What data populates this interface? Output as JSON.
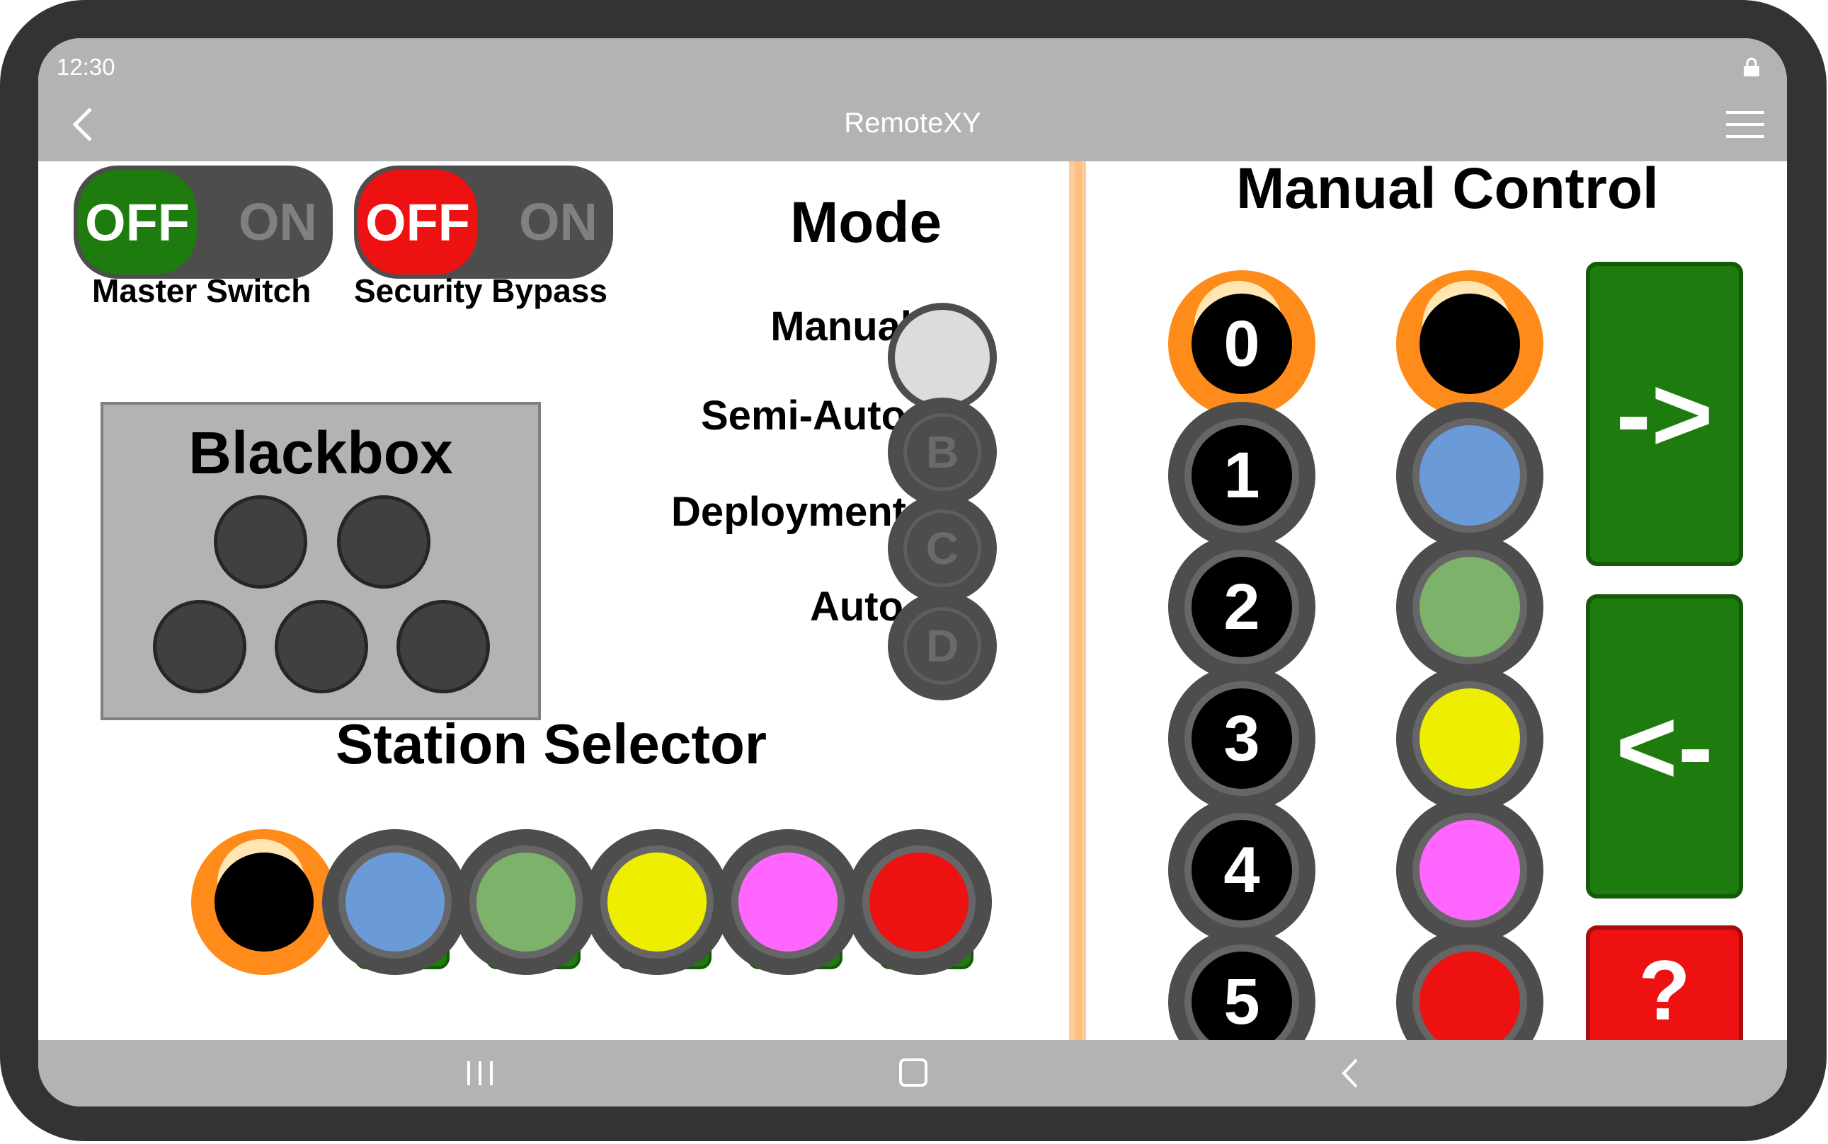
{
  "status_bar": {
    "time": "12:30",
    "icon": "lock-icon"
  },
  "title_bar": {
    "title": "RemoteXY",
    "back_icon": "chevron-left-icon",
    "menu_icon": "hamburger-menu-icon"
  },
  "nav_bar": {
    "icons": [
      "recent-apps-icon",
      "home-icon",
      "back-icon"
    ]
  },
  "switches": [
    {
      "off_label": "OFF",
      "on_label": "ON",
      "state": "OFF",
      "off_color": "#1e7b0d",
      "caption": "Master Switch"
    },
    {
      "off_label": "OFF",
      "on_label": "ON",
      "state": "OFF",
      "off_color": "#ee1111",
      "caption": "Security Bypass"
    }
  ],
  "blackbox": {
    "title": "Blackbox",
    "led_count": 5,
    "led_color": "#404040"
  },
  "mode": {
    "title": "Mode",
    "options": [
      {
        "label": "Manual",
        "letter": "",
        "selected": true
      },
      {
        "label": "Semi-Auto",
        "letter": "B",
        "selected": false
      },
      {
        "label": "Deployment",
        "letter": "C",
        "selected": false
      },
      {
        "label": "Auto",
        "letter": "D",
        "selected": false
      }
    ]
  },
  "station_selector": {
    "title": "Station Selector",
    "colors": [
      "#000000",
      "#6a9bd8",
      "#7cb26a",
      "#eeee00",
      "#ff66ff",
      "#ee1111"
    ],
    "selected_index": 0
  },
  "manual_control": {
    "title": "Manual Control",
    "numbers": [
      "0",
      "1",
      "2",
      "3",
      "4",
      "5"
    ],
    "selected_number": 0,
    "colors": [
      "#000000",
      "#6a9bd8",
      "#7cb26a",
      "#eeee00",
      "#ff66ff",
      "#ee1111"
    ],
    "selected_color": 0,
    "forward_label": "->",
    "back_label": "<-",
    "help_label": "?"
  },
  "colors": {
    "accent": "#ff8c1a",
    "green": "#1e7b0d",
    "red": "#ee1111",
    "divider": "#ffcc99",
    "bar": "#b3b3b3"
  }
}
